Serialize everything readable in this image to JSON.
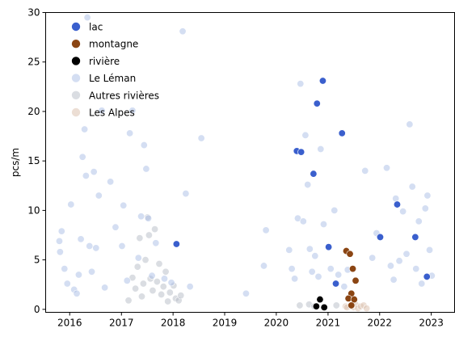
{
  "chart_data": {
    "type": "scatter",
    "title": "",
    "xlabel": "",
    "ylabel": "pcs/m",
    "xlim": [
      "2015-07-15",
      "2023-06-15"
    ],
    "ylim": [
      -0.3,
      30
    ],
    "xticks": [
      {
        "date": "2016-01-01",
        "label": "2016"
      },
      {
        "date": "2017-01-01",
        "label": "2017"
      },
      {
        "date": "2018-01-01",
        "label": "2018"
      },
      {
        "date": "2019-01-01",
        "label": "2019"
      },
      {
        "date": "2020-01-01",
        "label": "2020"
      },
      {
        "date": "2021-01-01",
        "label": "2021"
      },
      {
        "date": "2022-01-01",
        "label": "2022"
      },
      {
        "date": "2023-01-01",
        "label": "2023"
      }
    ],
    "yticks": [
      0,
      5,
      10,
      15,
      20,
      25,
      30
    ],
    "grid": false,
    "legend_position": "top-left",
    "series": [
      {
        "name": "lac",
        "color": "#3a5fcd",
        "opacity": 1.0,
        "points": [
          {
            "x": "2018-01-25",
            "y": 6.6
          },
          {
            "x": "2020-05-25",
            "y": 16.0
          },
          {
            "x": "2020-06-25",
            "y": 15.9
          },
          {
            "x": "2020-09-20",
            "y": 13.7
          },
          {
            "x": "2020-10-15",
            "y": 20.8
          },
          {
            "x": "2020-11-25",
            "y": 23.1
          },
          {
            "x": "2021-01-05",
            "y": 6.3
          },
          {
            "x": "2021-02-25",
            "y": 2.6
          },
          {
            "x": "2021-04-10",
            "y": 17.8
          },
          {
            "x": "2022-01-05",
            "y": 7.3
          },
          {
            "x": "2022-05-05",
            "y": 10.6
          },
          {
            "x": "2022-09-10",
            "y": 7.3
          },
          {
            "x": "2022-12-01",
            "y": 3.3
          }
        ]
      },
      {
        "name": "montagne",
        "color": "#8b4513",
        "opacity": 1.0,
        "points": [
          {
            "x": "2021-05-10",
            "y": 5.9
          },
          {
            "x": "2021-06-05",
            "y": 5.6
          },
          {
            "x": "2021-06-25",
            "y": 4.1
          },
          {
            "x": "2021-07-15",
            "y": 2.9
          },
          {
            "x": "2021-06-15",
            "y": 1.6
          },
          {
            "x": "2021-05-25",
            "y": 1.1
          },
          {
            "x": "2021-07-05",
            "y": 1.0
          },
          {
            "x": "2021-06-15",
            "y": 0.4
          }
        ]
      },
      {
        "name": "rivière",
        "color": "#000000",
        "opacity": 1.0,
        "points": [
          {
            "x": "2020-10-10",
            "y": 0.3
          },
          {
            "x": "2020-11-05",
            "y": 1.0
          },
          {
            "x": "2020-12-05",
            "y": 0.2
          }
        ]
      },
      {
        "name": "Le Léman",
        "color": "#aabde6",
        "opacity": 0.5,
        "points": [
          {
            "x": "2015-10-20",
            "y": 6.9
          },
          {
            "x": "2015-10-25",
            "y": 5.8
          },
          {
            "x": "2015-11-05",
            "y": 7.9
          },
          {
            "x": "2015-11-25",
            "y": 4.1
          },
          {
            "x": "2015-12-15",
            "y": 2.6
          },
          {
            "x": "2016-01-10",
            "y": 10.6
          },
          {
            "x": "2016-02-01",
            "y": 2.0
          },
          {
            "x": "2016-02-20",
            "y": 1.6
          },
          {
            "x": "2016-03-05",
            "y": 3.5
          },
          {
            "x": "2016-03-20",
            "y": 7.1
          },
          {
            "x": "2016-04-01",
            "y": 15.4
          },
          {
            "x": "2016-04-15",
            "y": 18.2
          },
          {
            "x": "2016-04-25",
            "y": 13.5
          },
          {
            "x": "2016-05-05",
            "y": 29.5
          },
          {
            "x": "2016-05-20",
            "y": 6.4
          },
          {
            "x": "2016-06-05",
            "y": 3.8
          },
          {
            "x": "2016-06-20",
            "y": 13.9
          },
          {
            "x": "2016-07-05",
            "y": 6.2
          },
          {
            "x": "2016-07-25",
            "y": 11.5
          },
          {
            "x": "2016-08-15",
            "y": 20.1
          },
          {
            "x": "2016-09-05",
            "y": 2.2
          },
          {
            "x": "2016-10-15",
            "y": 12.9
          },
          {
            "x": "2016-11-20",
            "y": 8.3
          },
          {
            "x": "2017-01-05",
            "y": 6.4
          },
          {
            "x": "2017-01-15",
            "y": 10.5
          },
          {
            "x": "2017-02-10",
            "y": 2.9
          },
          {
            "x": "2017-03-01",
            "y": 17.8
          },
          {
            "x": "2017-03-20",
            "y": 20.1
          },
          {
            "x": "2017-05-01",
            "y": 5.2
          },
          {
            "x": "2017-05-20",
            "y": 9.4
          },
          {
            "x": "2017-06-10",
            "y": 16.6
          },
          {
            "x": "2017-06-25",
            "y": 14.2
          },
          {
            "x": "2017-07-10",
            "y": 9.2
          },
          {
            "x": "2017-08-05",
            "y": 3.4
          },
          {
            "x": "2017-09-01",
            "y": 6.7
          },
          {
            "x": "2017-11-01",
            "y": 3.1
          },
          {
            "x": "2017-12-20",
            "y": 2.7
          },
          {
            "x": "2018-03-10",
            "y": 28.1
          },
          {
            "x": "2018-04-01",
            "y": 11.7
          },
          {
            "x": "2018-05-01",
            "y": 2.3
          },
          {
            "x": "2018-07-20",
            "y": 17.3
          },
          {
            "x": "2019-06-01",
            "y": 1.6
          },
          {
            "x": "2019-10-05",
            "y": 4.4
          },
          {
            "x": "2019-10-20",
            "y": 8.0
          },
          {
            "x": "2020-04-01",
            "y": 6.0
          },
          {
            "x": "2020-04-20",
            "y": 4.1
          },
          {
            "x": "2020-05-10",
            "y": 3.1
          },
          {
            "x": "2020-06-01",
            "y": 9.2
          },
          {
            "x": "2020-06-20",
            "y": 22.8
          },
          {
            "x": "2020-07-10",
            "y": 8.9
          },
          {
            "x": "2020-07-25",
            "y": 17.6
          },
          {
            "x": "2020-08-10",
            "y": 12.6
          },
          {
            "x": "2020-08-25",
            "y": 6.1
          },
          {
            "x": "2020-09-10",
            "y": 3.8
          },
          {
            "x": "2020-10-01",
            "y": 5.4
          },
          {
            "x": "2020-10-25",
            "y": 3.3
          },
          {
            "x": "2020-11-10",
            "y": 16.2
          },
          {
            "x": "2020-12-01",
            "y": 8.6
          },
          {
            "x": "2021-01-20",
            "y": 4.1
          },
          {
            "x": "2021-02-15",
            "y": 10.0
          },
          {
            "x": "2021-03-15",
            "y": 3.5
          },
          {
            "x": "2021-04-25",
            "y": 2.3
          },
          {
            "x": "2021-05-20",
            "y": 4.0
          },
          {
            "x": "2021-09-20",
            "y": 14.0
          },
          {
            "x": "2021-11-10",
            "y": 5.2
          },
          {
            "x": "2021-12-10",
            "y": 7.7
          },
          {
            "x": "2022-02-20",
            "y": 14.3
          },
          {
            "x": "2022-03-20",
            "y": 4.4
          },
          {
            "x": "2022-04-10",
            "y": 3.0
          },
          {
            "x": "2022-04-25",
            "y": 11.2
          },
          {
            "x": "2022-05-20",
            "y": 4.9
          },
          {
            "x": "2022-06-15",
            "y": 9.9
          },
          {
            "x": "2022-07-10",
            "y": 5.6
          },
          {
            "x": "2022-08-01",
            "y": 18.7
          },
          {
            "x": "2022-08-20",
            "y": 12.4
          },
          {
            "x": "2022-09-15",
            "y": 4.1
          },
          {
            "x": "2022-10-05",
            "y": 8.9
          },
          {
            "x": "2022-10-25",
            "y": 2.6
          },
          {
            "x": "2022-11-20",
            "y": 10.2
          },
          {
            "x": "2022-12-05",
            "y": 11.5
          },
          {
            "x": "2022-12-20",
            "y": 6.0
          },
          {
            "x": "2023-01-05",
            "y": 3.4
          }
        ]
      },
      {
        "name": "Autres rivières",
        "color": "#b5bcc6",
        "opacity": 0.5,
        "points": [
          {
            "x": "2017-02-20",
            "y": 0.9
          },
          {
            "x": "2017-03-20",
            "y": 3.2
          },
          {
            "x": "2017-04-10",
            "y": 2.1
          },
          {
            "x": "2017-04-25",
            "y": 4.3
          },
          {
            "x": "2017-05-10",
            "y": 7.2
          },
          {
            "x": "2017-05-25",
            "y": 1.3
          },
          {
            "x": "2017-06-05",
            "y": 2.6
          },
          {
            "x": "2017-06-20",
            "y": 5.0
          },
          {
            "x": "2017-07-05",
            "y": 9.3
          },
          {
            "x": "2017-07-15",
            "y": 7.5
          },
          {
            "x": "2017-07-25",
            "y": 3.1
          },
          {
            "x": "2017-08-10",
            "y": 1.9
          },
          {
            "x": "2017-08-25",
            "y": 8.1
          },
          {
            "x": "2017-09-10",
            "y": 2.8
          },
          {
            "x": "2017-09-25",
            "y": 4.6
          },
          {
            "x": "2017-10-10",
            "y": 1.5
          },
          {
            "x": "2017-10-25",
            "y": 2.3
          },
          {
            "x": "2017-11-10",
            "y": 3.8
          },
          {
            "x": "2017-11-25",
            "y": 0.8
          },
          {
            "x": "2017-12-10",
            "y": 1.7
          },
          {
            "x": "2018-01-05",
            "y": 2.4
          },
          {
            "x": "2018-01-20",
            "y": 1.1
          },
          {
            "x": "2018-02-10",
            "y": 0.9
          },
          {
            "x": "2018-02-25",
            "y": 1.4
          },
          {
            "x": "2020-06-15",
            "y": 0.4
          },
          {
            "x": "2020-08-20",
            "y": 0.5
          },
          {
            "x": "2020-09-25",
            "y": 0.3
          },
          {
            "x": "2021-03-01",
            "y": 0.4
          }
        ]
      },
      {
        "name": "Les Alpes",
        "color": "#dcc3b1",
        "opacity": 0.55,
        "points": [
          {
            "x": "2021-05-05",
            "y": 0.3
          },
          {
            "x": "2021-05-15",
            "y": 0.2
          },
          {
            "x": "2021-06-01",
            "y": 1.1
          },
          {
            "x": "2021-06-20",
            "y": 0.4
          },
          {
            "x": "2021-07-01",
            "y": 0.2
          },
          {
            "x": "2021-07-15",
            "y": 0.5
          },
          {
            "x": "2021-08-01",
            "y": 0.1
          },
          {
            "x": "2021-08-20",
            "y": 0.3
          },
          {
            "x": "2021-09-10",
            "y": 0.4
          },
          {
            "x": "2021-10-01",
            "y": 0.1
          }
        ]
      }
    ]
  }
}
